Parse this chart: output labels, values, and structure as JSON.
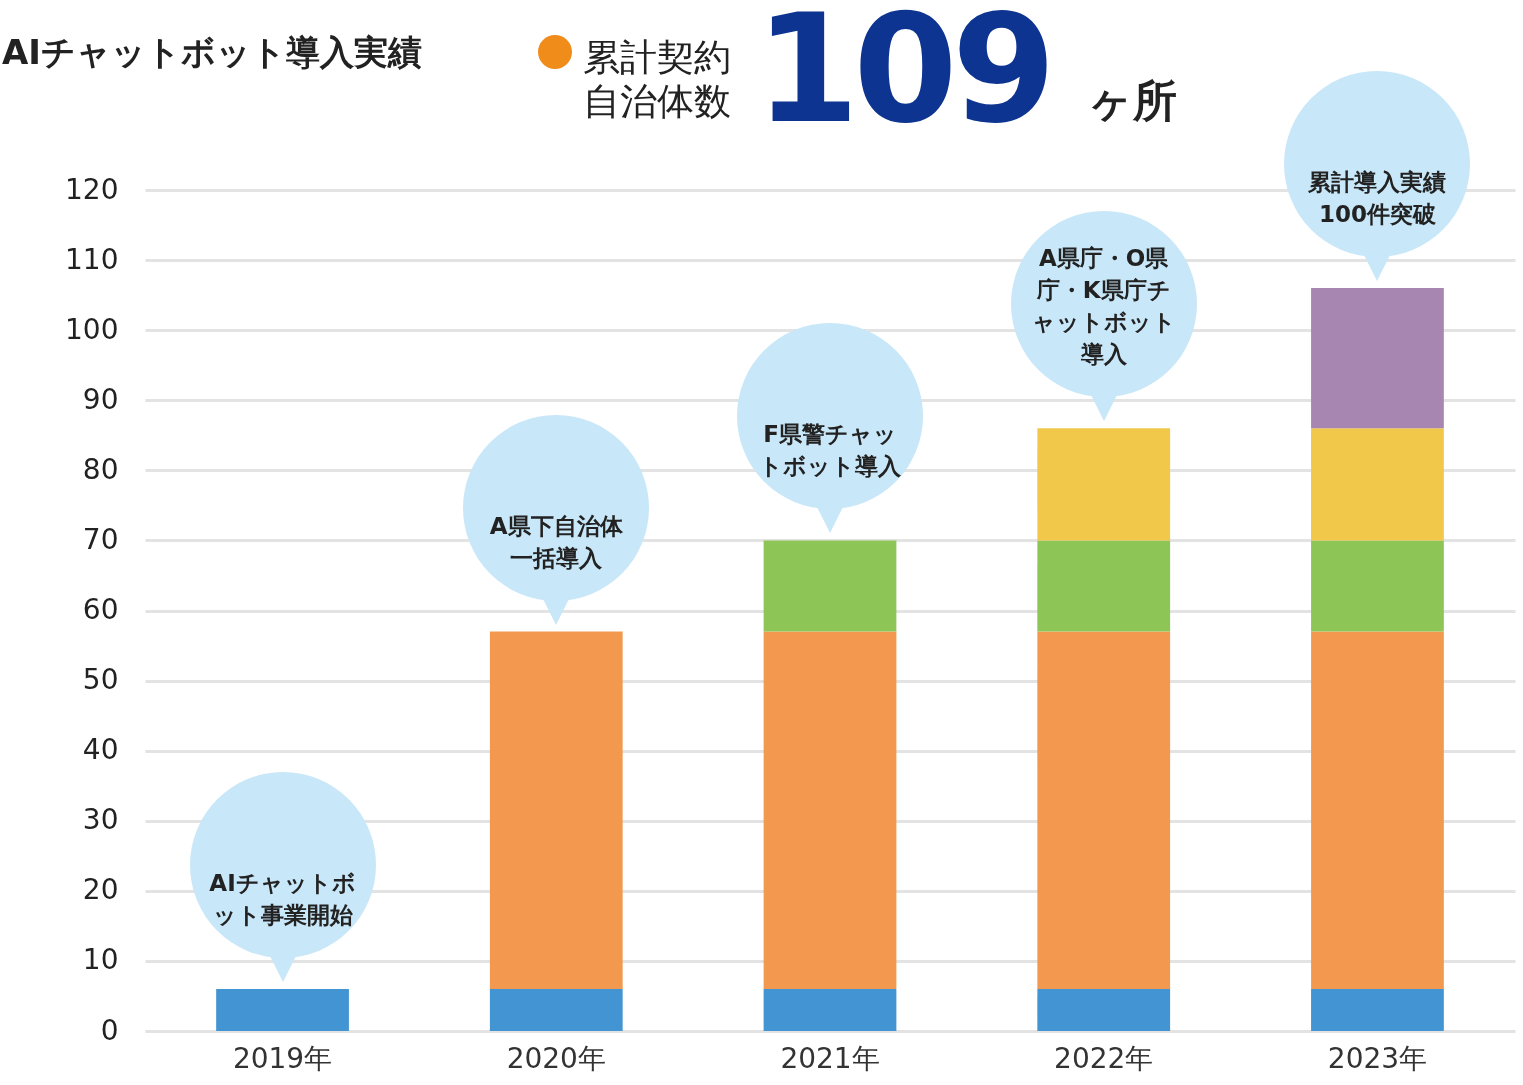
{
  "chart_data": {
    "type": "bar",
    "title": "AIチャットボット導入実績",
    "subtitle": "累計契約自治体数",
    "stacked": true,
    "grid": "y",
    "categories": [
      "2019年",
      "2020年",
      "2021年",
      "2022年",
      "2023年"
    ],
    "series": [
      {
        "color": "#4394d2",
        "values": [
          6,
          6,
          6,
          6,
          6
        ]
      },
      {
        "color": "#f2994f",
        "values": [
          null,
          51,
          51,
          51,
          51
        ]
      },
      {
        "color": "#8dc556",
        "values": [
          null,
          null,
          13,
          13,
          13
        ]
      },
      {
        "color": "#f1c84a",
        "values": [
          null,
          null,
          null,
          16,
          16
        ]
      },
      {
        "color": "#a886b2",
        "values": [
          null,
          null,
          null,
          null,
          20
        ]
      }
    ],
    "ylim": [
      0,
      120
    ],
    "yticks": [
      0,
      10,
      20,
      30,
      40,
      50,
      60,
      70,
      80,
      90,
      100,
      110,
      120
    ],
    "annotations": [
      {
        "text": "AIチャットボット事業開始",
        "x": "2019年",
        "y": 6
      },
      {
        "text": "A県下自治体一括導入",
        "x": "2020年",
        "y": 57
      },
      {
        "text": "F県警チャットボット導入",
        "x": "2021年",
        "y": 70
      },
      {
        "text": "A県庁・O県庁・K県庁チャットボット導入",
        "x": "2022年",
        "y": 86
      },
      {
        "text": "累計導入実績100件突破",
        "x": "2023年",
        "y": 106
      },
      "109",
      "ヶ所"
    ]
  }
}
